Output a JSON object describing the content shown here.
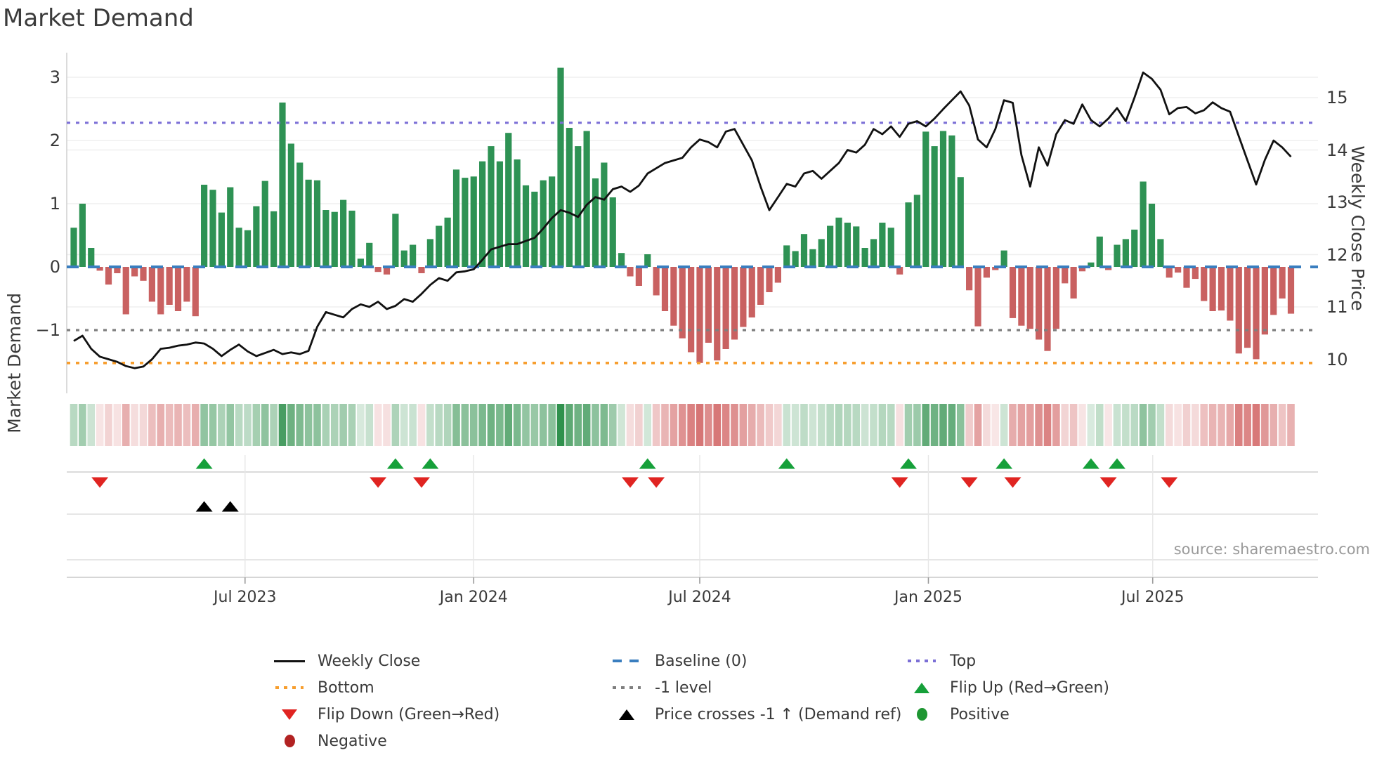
{
  "title": "Market Demand",
  "source": "source: sharemaestro.com",
  "axes": {
    "left_label": "Market Demand",
    "right_label": "Weekly Close Price",
    "left_ticks": [
      {
        "label": "3",
        "v": 3
      },
      {
        "label": "2",
        "v": 2
      },
      {
        "label": "1",
        "v": 1
      },
      {
        "label": "0",
        "v": 0
      },
      {
        "label": "−1",
        "v": -1
      }
    ],
    "right_ticks": [
      {
        "label": "15",
        "p": 15
      },
      {
        "label": "14",
        "p": 14
      },
      {
        "label": "13",
        "p": 13
      },
      {
        "label": "12",
        "p": 12
      },
      {
        "label": "11",
        "p": 11
      },
      {
        "label": "10",
        "p": 10
      }
    ],
    "x_ticks": [
      {
        "label": "Jul 2023",
        "week": 19.7
      },
      {
        "label": "Jan 2024",
        "week": 46.0
      },
      {
        "label": "Jul 2024",
        "week": 72.0
      },
      {
        "label": "Jan 2025",
        "week": 98.3
      },
      {
        "label": "Jul 2025",
        "week": 124.1
      }
    ]
  },
  "colors": {
    "bar_positive": "#2e9254",
    "bar_negative": "#c96161",
    "price_line": "#111111",
    "baseline": "#3a7ebf",
    "top_line": "#7b6fd6",
    "bottom_line": "#f79e2e",
    "minus_one_line": "#7f7f7f",
    "flip_up": "#16a03a",
    "flip_down": "#e02421",
    "price_cross": "#000000",
    "positive_dot": "#1e9632",
    "negative_dot": "#b22222",
    "grid": "#efefef",
    "spine": "#cfcfcf",
    "text": "#3a3a3a",
    "source_text": "#9a9a9a"
  },
  "legend": {
    "columns": [
      [
        {
          "marker": "line",
          "color": "#111111",
          "label": "Weekly Close"
        },
        {
          "marker": "dotted",
          "color": "#f79e2e",
          "label": "Bottom"
        },
        {
          "marker": "tri-down",
          "color": "#e02421",
          "label": "Flip Down (Green→Red)"
        },
        {
          "marker": "circle",
          "color": "#b22222",
          "label": "Negative"
        }
      ],
      [
        {
          "marker": "dashed",
          "color": "#3a7ebf",
          "label": "Baseline (0)"
        },
        {
          "marker": "dotted",
          "color": "#7f7f7f",
          "label": "-1 level"
        },
        {
          "marker": "tri-up",
          "color": "#000000",
          "label": "Price crosses -1 ↑ (Demand ref)"
        }
      ],
      [
        {
          "marker": "dotted",
          "color": "#7b6fd6",
          "label": "Top"
        },
        {
          "marker": "tri-up",
          "color": "#16a03a",
          "label": "Flip Up (Red→Green)"
        },
        {
          "marker": "circle",
          "color": "#1e9632",
          "label": "Positive"
        }
      ]
    ]
  },
  "chart_data": {
    "type": "bar+line",
    "x_unit": "week",
    "x_tick_labels": [
      "Jul 2023",
      "Jan 2024",
      "Jul 2024",
      "Jan 2025",
      "Jul 2025"
    ],
    "left_axis": {
      "label": "Market Demand",
      "range": [
        -2.0,
        3.4
      ],
      "ticks": [
        3,
        2,
        1,
        0,
        -1
      ]
    },
    "right_axis": {
      "label": "Weekly Close Price",
      "range": [
        9.55,
        16.1
      ],
      "ticks": [
        15,
        14,
        13,
        12,
        11,
        10
      ]
    },
    "levels": {
      "baseline": 0,
      "top": 2.28,
      "bottom": -1.52,
      "minus_one": -1
    },
    "series": [
      {
        "name": "Market Demand",
        "type": "bar",
        "values": [
          0.62,
          1.0,
          0.3,
          -0.06,
          -0.28,
          -0.1,
          -0.75,
          -0.15,
          -0.22,
          -0.55,
          -0.75,
          -0.6,
          -0.7,
          -0.55,
          -0.78,
          1.3,
          1.22,
          0.86,
          1.26,
          0.62,
          0.58,
          0.96,
          1.36,
          0.88,
          2.6,
          1.95,
          1.65,
          1.38,
          1.37,
          0.9,
          0.87,
          1.06,
          0.89,
          0.13,
          0.38,
          -0.08,
          -0.12,
          0.84,
          0.26,
          0.35,
          -0.1,
          0.44,
          0.65,
          0.78,
          1.54,
          1.41,
          1.43,
          1.67,
          1.91,
          1.67,
          2.12,
          1.7,
          1.29,
          1.19,
          1.37,
          1.43,
          3.15,
          2.2,
          1.91,
          2.15,
          1.4,
          1.65,
          1.1,
          0.22,
          -0.15,
          -0.3,
          0.2,
          -0.45,
          -0.7,
          -0.93,
          -1.13,
          -1.35,
          -1.52,
          -1.2,
          -1.48,
          -1.3,
          -1.15,
          -0.95,
          -0.8,
          -0.6,
          -0.4,
          -0.25,
          0.34,
          0.25,
          0.52,
          0.28,
          0.44,
          0.65,
          0.78,
          0.7,
          0.64,
          0.3,
          0.44,
          0.7,
          0.62,
          -0.12,
          1.02,
          1.14,
          2.14,
          1.91,
          2.15,
          2.08,
          1.42,
          -0.37,
          -0.94,
          -0.17,
          -0.05,
          0.26,
          -0.81,
          -0.93,
          -0.98,
          -1.15,
          -1.33,
          -0.98,
          -0.26,
          -0.5,
          -0.07,
          0.07,
          0.48,
          -0.05,
          0.35,
          0.44,
          0.59,
          1.35,
          1.0,
          0.44,
          -0.17,
          -0.09,
          -0.33,
          -0.19,
          -0.54,
          -0.7,
          -0.69,
          -0.85,
          -1.37,
          -1.28,
          -1.46,
          -1.07,
          -0.76,
          -0.5,
          -0.74
        ]
      },
      {
        "name": "Weekly Close",
        "type": "line",
        "values": [
          10.35,
          10.45,
          10.2,
          10.05,
          10.0,
          9.95,
          9.87,
          9.83,
          9.86,
          10.0,
          10.2,
          10.22,
          10.26,
          10.28,
          10.32,
          10.3,
          10.2,
          10.06,
          10.18,
          10.28,
          10.15,
          10.06,
          10.12,
          10.18,
          10.1,
          10.13,
          10.1,
          10.16,
          10.62,
          10.9,
          10.85,
          10.8,
          10.96,
          11.05,
          11.0,
          11.1,
          10.96,
          11.02,
          11.15,
          11.1,
          11.25,
          11.42,
          11.55,
          11.5,
          11.66,
          11.68,
          11.72,
          11.9,
          12.1,
          12.15,
          12.2,
          12.2,
          12.26,
          12.32,
          12.5,
          12.7,
          12.85,
          12.8,
          12.72,
          12.95,
          13.1,
          13.05,
          13.25,
          13.3,
          13.2,
          13.32,
          13.55,
          13.65,
          13.75,
          13.8,
          13.85,
          14.05,
          14.2,
          14.15,
          14.05,
          14.35,
          14.4,
          14.1,
          13.8,
          13.3,
          12.85,
          13.1,
          13.35,
          13.3,
          13.55,
          13.6,
          13.45,
          13.6,
          13.75,
          14.0,
          13.95,
          14.1,
          14.4,
          14.3,
          14.45,
          14.25,
          14.5,
          14.55,
          14.45,
          14.6,
          14.78,
          14.95,
          15.12,
          14.85,
          14.2,
          14.05,
          14.4,
          14.95,
          14.9,
          13.9,
          13.3,
          14.05,
          13.7,
          14.3,
          14.57,
          14.5,
          14.87,
          14.57,
          14.45,
          14.6,
          14.8,
          14.55,
          15.0,
          15.48,
          15.36,
          15.15,
          14.68,
          14.8,
          14.82,
          14.7,
          14.76,
          14.91,
          14.8,
          14.73,
          14.26,
          13.8,
          13.34,
          13.81,
          14.18,
          14.05,
          13.87
        ]
      }
    ],
    "markers": {
      "flip_up_weeks": [
        15,
        37,
        41,
        66,
        82,
        96,
        107,
        117,
        120
      ],
      "flip_down_weeks": [
        3,
        35,
        40,
        64,
        67,
        95,
        103,
        108,
        119,
        126
      ],
      "price_cross_weeks": [
        15,
        18
      ]
    },
    "heatmap": "demand sign/intensity strip, one cell per week",
    "legend_entries": [
      "Weekly Close",
      "Baseline (0)",
      "Top",
      "Bottom",
      "-1 level",
      "Flip Up (Red→Green)",
      "Flip Down (Green→Red)",
      "Price crosses -1 ↑ (Demand ref)",
      "Positive",
      "Negative"
    ]
  }
}
